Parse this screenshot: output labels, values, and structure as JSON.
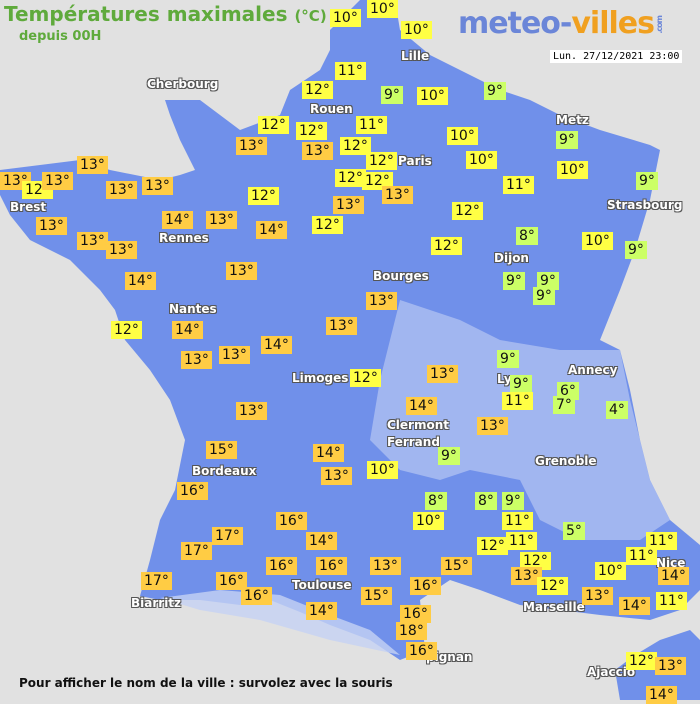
{
  "header": {
    "title": "Températures maximales",
    "unit": "(°C)",
    "subtitle": "depuis 00H",
    "logo_main": "meteo-",
    "logo_accent": "villes",
    "logo_suffix": ".com",
    "datetime": "Lun. 27/12/2021 23:00"
  },
  "footer": {
    "text": "Pour afficher le nom de la ville : survolez avec la souris"
  },
  "colors": {
    "land": "#7090ea",
    "sea": "#e1e1e1",
    "cold": "#ccff66",
    "mild": "#ffff44",
    "warm": "#ffcc44",
    "title": "#5faa3c"
  },
  "cities": [
    "Cherbourg",
    "Rouen",
    "Lille",
    "Paris",
    "Metz",
    "Strasbourg",
    "Brest",
    "Rennes",
    "Dijon",
    "Bourges",
    "Nantes",
    "Limoges",
    "Ly",
    "Annecy",
    "Clermont",
    "Ferrand",
    "Grenoble",
    "Bordeaux",
    "Toulouse",
    "Biarritz",
    "Marseille",
    "Nice",
    "pignan",
    "Ajaccio"
  ],
  "temperatures": [
    "10°",
    "10°",
    "10°",
    "11°",
    "12°",
    "9°",
    "10°",
    "9°",
    "12°",
    "12°",
    "11°",
    "13°",
    "13°",
    "12°",
    "10°",
    "12°",
    "10°",
    "12°",
    "12°",
    "13°",
    "11°",
    "9°",
    "10°",
    "9°",
    "13°",
    "13°",
    "12°",
    "13°",
    "13°",
    "13°",
    "12°",
    "14°",
    "13°",
    "13°",
    "14°",
    "12°",
    "12°",
    "13°",
    "13°",
    "13°",
    "8°",
    "10°",
    "9°",
    "12°",
    "13°",
    "14°",
    "9°",
    "9°",
    "9°",
    "13°",
    "12°",
    "14°",
    "13°",
    "13°",
    "13°",
    "14°",
    "9°",
    "12°",
    "13°",
    "9°",
    "11°",
    "6°",
    "7°",
    "4°",
    "14°",
    "13°",
    "13°",
    "15°",
    "14°",
    "9°",
    "10°",
    "13°",
    "16°",
    "8°",
    "8°",
    "9°",
    "10°",
    "11°",
    "16°",
    "5°",
    "17°",
    "14°",
    "11°",
    "12°",
    "17°",
    "11°",
    "11°",
    "12°",
    "16°",
    "16°",
    "13°",
    "15°",
    "10°",
    "14°",
    "13°",
    "17°",
    "16°",
    "16°",
    "12°",
    "13°",
    "16°",
    "15°",
    "11°",
    "14°",
    "14°",
    "16°",
    "18°",
    "16°",
    "12°",
    "13°",
    "14°"
  ]
}
